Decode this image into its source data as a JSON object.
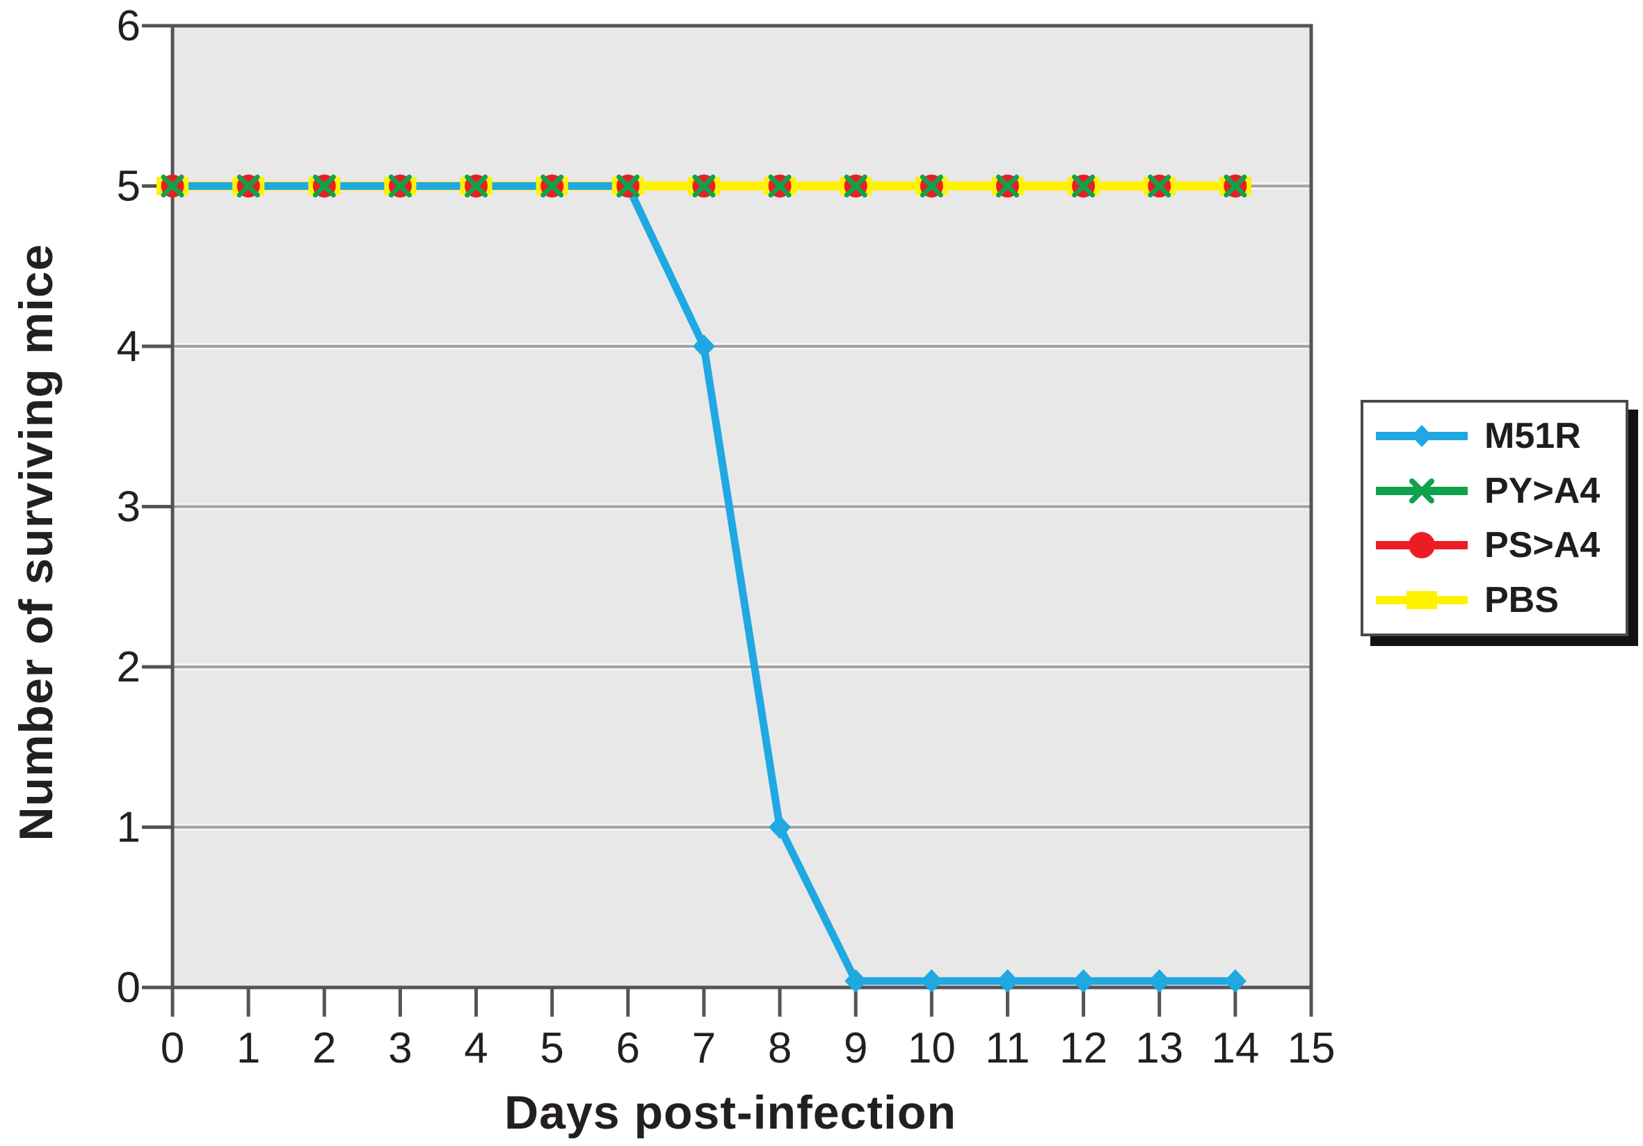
{
  "figure": {
    "background": "#FFFFFF"
  },
  "chart_data": {
    "type": "line",
    "title": "",
    "xlabel": "Days post-infection",
    "ylabel": "Number of surviving mice",
    "x": [
      0,
      1,
      2,
      3,
      4,
      5,
      6,
      7,
      8,
      9,
      10,
      11,
      12,
      13,
      14
    ],
    "series": [
      {
        "name": "M51R",
        "marker": "diamond",
        "color": "#1FA8E2",
        "values": [
          5,
          5,
          5,
          5,
          5,
          5,
          5,
          4,
          1,
          0,
          0,
          0,
          0,
          0,
          0
        ]
      },
      {
        "name": "PY>A4",
        "marker": "x",
        "color": "#0FA14C",
        "values": [
          5,
          5,
          5,
          5,
          5,
          5,
          5,
          5,
          5,
          5,
          5,
          5,
          5,
          5,
          5
        ]
      },
      {
        "name": "PS>A4",
        "marker": "circle",
        "color": "#EC1C24",
        "values": [
          5,
          5,
          5,
          5,
          5,
          5,
          5,
          5,
          5,
          5,
          5,
          5,
          5,
          5,
          5
        ]
      },
      {
        "name": "PBS",
        "marker": "square",
        "color": "#FFF200",
        "values": [
          5,
          5,
          5,
          5,
          5,
          5,
          5,
          5,
          5,
          5,
          5,
          5,
          5,
          5,
          5
        ]
      }
    ],
    "xlim": [
      0,
      15
    ],
    "ylim": [
      0,
      6
    ],
    "xticks": [
      0,
      1,
      2,
      3,
      4,
      5,
      6,
      7,
      8,
      9,
      10,
      11,
      12,
      13,
      14,
      15
    ],
    "yticks": [
      0,
      1,
      2,
      3,
      4,
      5,
      6
    ],
    "grid": true,
    "legend_position": "right",
    "plot_bg": "#E8E8E8",
    "grid_color": "#A2A2A4",
    "grid_halo_color": "#F4F4F4",
    "axis_color": "#535456",
    "text_color": "#231F20"
  }
}
